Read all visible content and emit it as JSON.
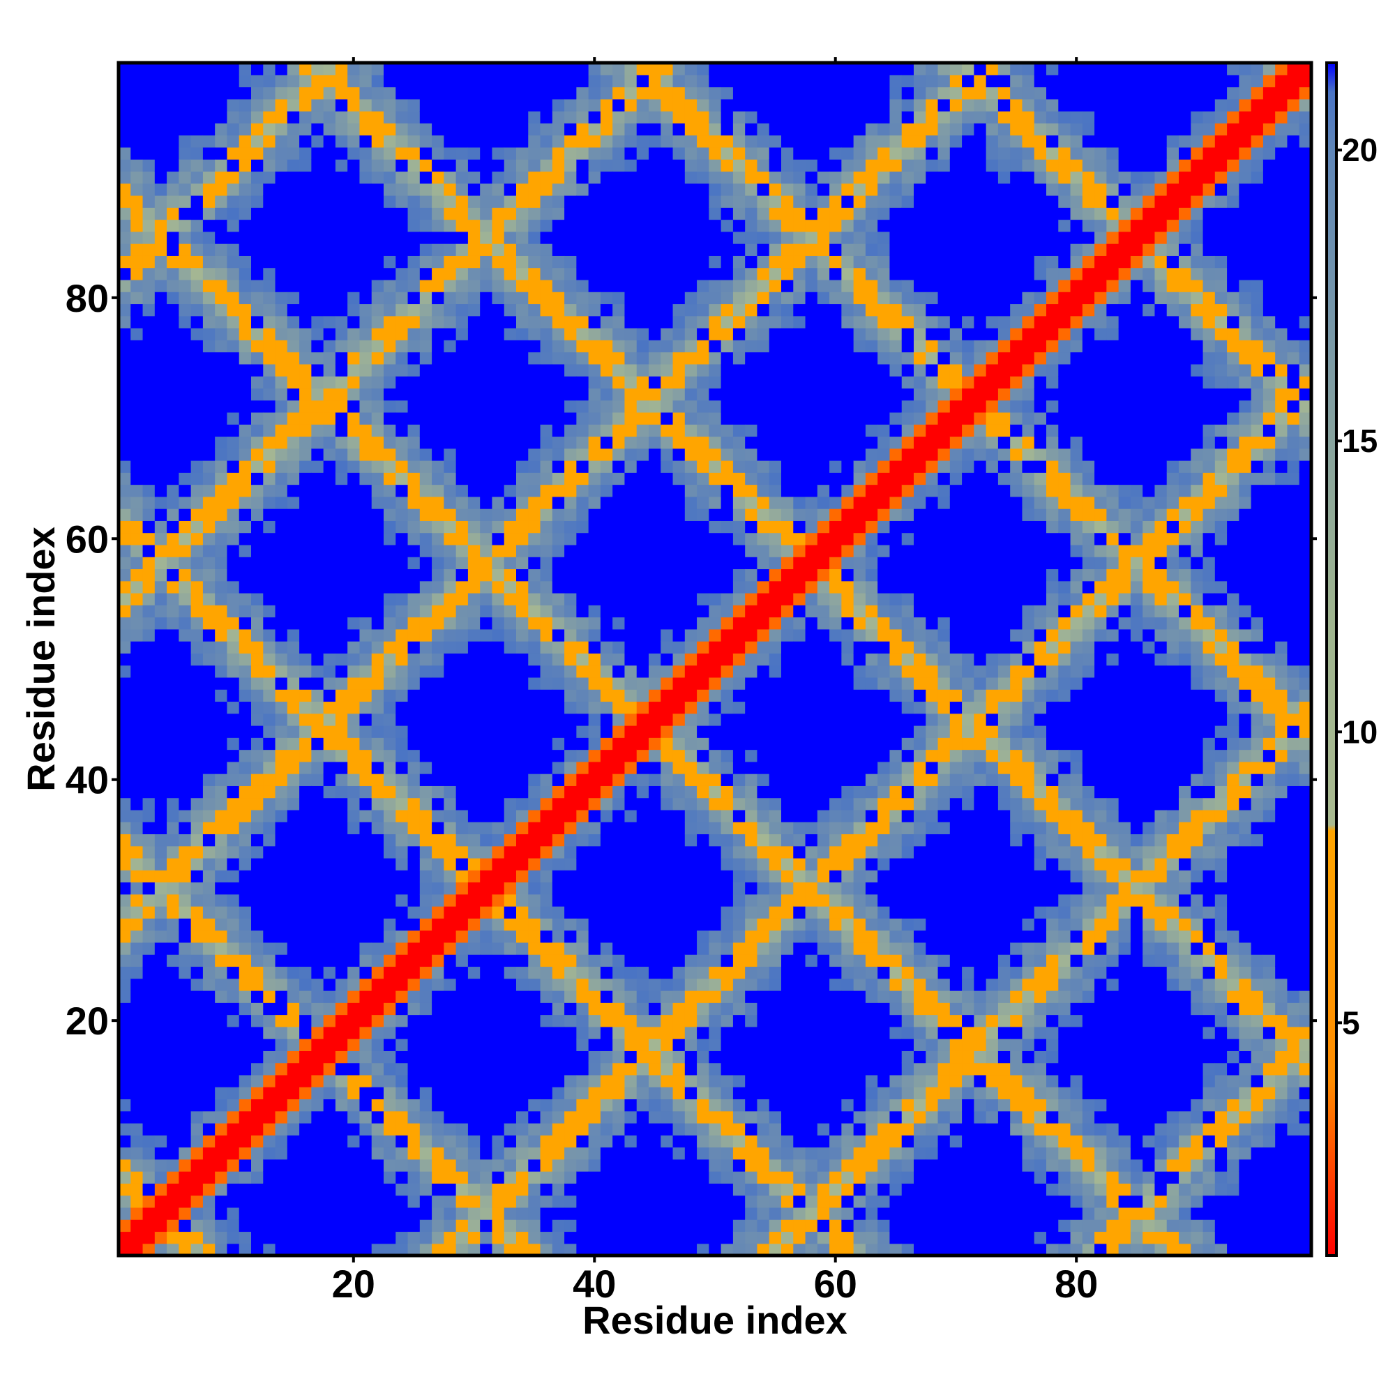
{
  "chart_data": {
    "type": "heatmap",
    "title": "",
    "xlabel": "Residue index",
    "ylabel": "Residue index",
    "x_range": [
      1,
      99
    ],
    "y_range": [
      1,
      99
    ],
    "x_ticks": [
      20,
      40,
      60,
      80
    ],
    "y_ticks": [
      20,
      40,
      60,
      80
    ],
    "grid": false,
    "colorbar": {
      "placement": "right",
      "range": [
        1,
        21.5
      ],
      "ticks": [
        5,
        10,
        15,
        20
      ],
      "colorscale": [
        {
          "value": 1,
          "color": "#ff0000"
        },
        {
          "value": 4,
          "color": "#ff8c00"
        },
        {
          "value": 8.3,
          "color": "#ffa500"
        },
        {
          "value": 8.4,
          "color": "#a9ba90"
        },
        {
          "value": 12,
          "color": "#9fb58f"
        },
        {
          "value": 20,
          "color": "#5f86b8"
        },
        {
          "value": 21,
          "color": "#4a74c4"
        },
        {
          "value": 21.5,
          "color": "#0000ff"
        }
      ]
    },
    "cutoff_color": "#0000ff",
    "cutoff_value": 21,
    "description_of_values": "Symmetric residue-residue distance map; diagonal band value ~1, off-diagonal contact bands 5-8, background >=21",
    "model": {
      "diagonal_value": 1,
      "helix_period": 17,
      "background": 22
    }
  },
  "ticks": {
    "x": [
      "20",
      "40",
      "60",
      "80"
    ],
    "y": [
      "20",
      "40",
      "60",
      "80"
    ],
    "colorbar": [
      "5",
      "10",
      "15",
      "20"
    ]
  },
  "labels": {
    "xlabel": "Residue index",
    "ylabel": "Residue index"
  }
}
